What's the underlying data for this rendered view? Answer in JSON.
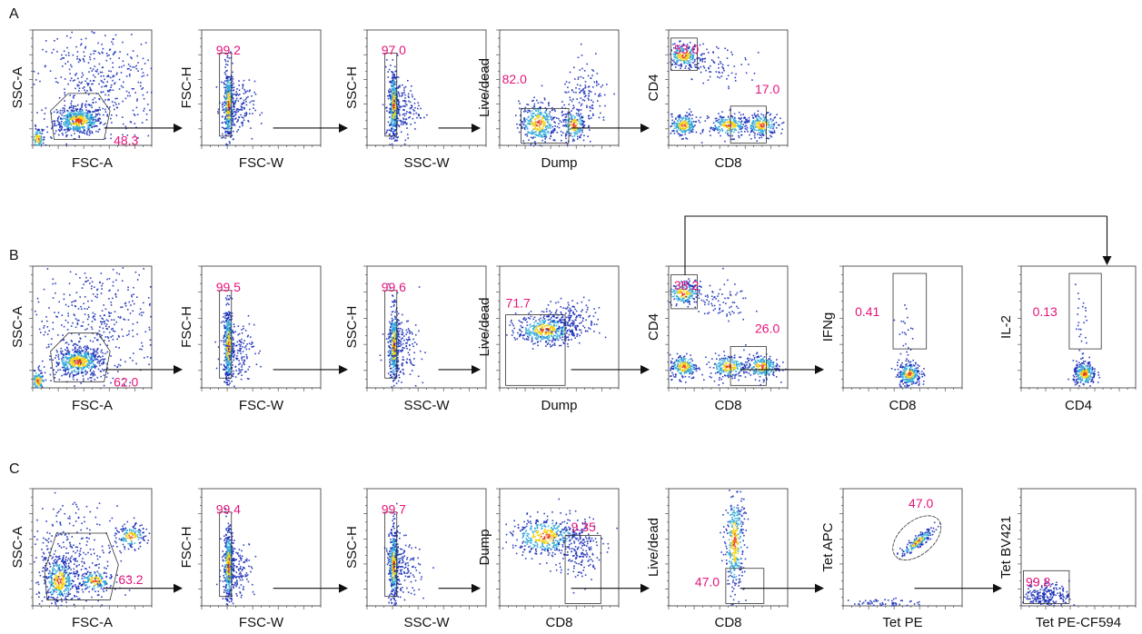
{
  "rows": [
    {
      "letter": "A",
      "plots": [
        {
          "xlabel": "FSC-A",
          "ylabel": "SSC-A",
          "gate": "48.3",
          "cells": "fsc_ssc"
        },
        {
          "xlabel": "FSC-W",
          "ylabel": "FSC-H",
          "gate": "99.2",
          "cells": "singlet"
        },
        {
          "xlabel": "SSC-W",
          "ylabel": "SSC-H",
          "gate": "97.0",
          "cells": "singlet"
        },
        {
          "xlabel": "Dump",
          "ylabel": "Live/dead",
          "gate": "82.0",
          "cells": "dump_a"
        },
        {
          "xlabel": "CD8",
          "ylabel": "CD4",
          "gates": [
            "53.0",
            "17.0"
          ],
          "cells": "cd4cd8"
        }
      ]
    },
    {
      "letter": "B",
      "plots": [
        {
          "xlabel": "FSC-A",
          "ylabel": "SSC-A",
          "gate": "62.0",
          "cells": "fsc_ssc"
        },
        {
          "xlabel": "FSC-W",
          "ylabel": "FSC-H",
          "gate": "99.5",
          "cells": "singlet"
        },
        {
          "xlabel": "SSC-W",
          "ylabel": "SSC-H",
          "gate": "99.6",
          "cells": "singlet"
        },
        {
          "xlabel": "Dump",
          "ylabel": "Live/dead",
          "gate": "71.7",
          "cells": "dump_b"
        },
        {
          "xlabel": "CD8",
          "ylabel": "CD4",
          "gates": [
            "38.2",
            "26.0"
          ],
          "cells": "cd4cd8"
        },
        {
          "xlabel": "CD8",
          "ylabel": "IFNg",
          "gate": "0.41",
          "cells": "cytokine"
        },
        {
          "xlabel": "CD4",
          "ylabel": "IL-2",
          "gate": "0.13",
          "cells": "cytokine"
        }
      ]
    },
    {
      "letter": "C",
      "plots": [
        {
          "xlabel": "FSC-A",
          "ylabel": "SSC-A",
          "gate": "63.2",
          "cells": "fsc_ssc_c"
        },
        {
          "xlabel": "FSC-W",
          "ylabel": "FSC-H",
          "gate": "99.4",
          "cells": "singlet"
        },
        {
          "xlabel": "SSC-W",
          "ylabel": "SSC-H",
          "gate": "99.7",
          "cells": "singlet"
        },
        {
          "xlabel": "CD8",
          "ylabel": "Dump",
          "gate": "9.35",
          "cells": "dump_c"
        },
        {
          "xlabel": "CD8",
          "ylabel": "Live/dead",
          "gate": "47.0",
          "cells": "live_c"
        },
        {
          "xlabel": "Tet PE",
          "ylabel": "Tet APC",
          "gate": "47.0",
          "cells": "tet"
        },
        {
          "xlabel": "Tet PE-CF594",
          "ylabel": "Tet BV421",
          "gate": "99.8",
          "cells": "tet2"
        }
      ]
    }
  ],
  "colors": {
    "gate_value": "#e4147a",
    "text": "#111111",
    "frame": "#333333",
    "density_low": "#1a2fb8",
    "density_mid": "#2fa8d8",
    "density_high": "#f5d010",
    "density_peak": "#e83a18"
  }
}
